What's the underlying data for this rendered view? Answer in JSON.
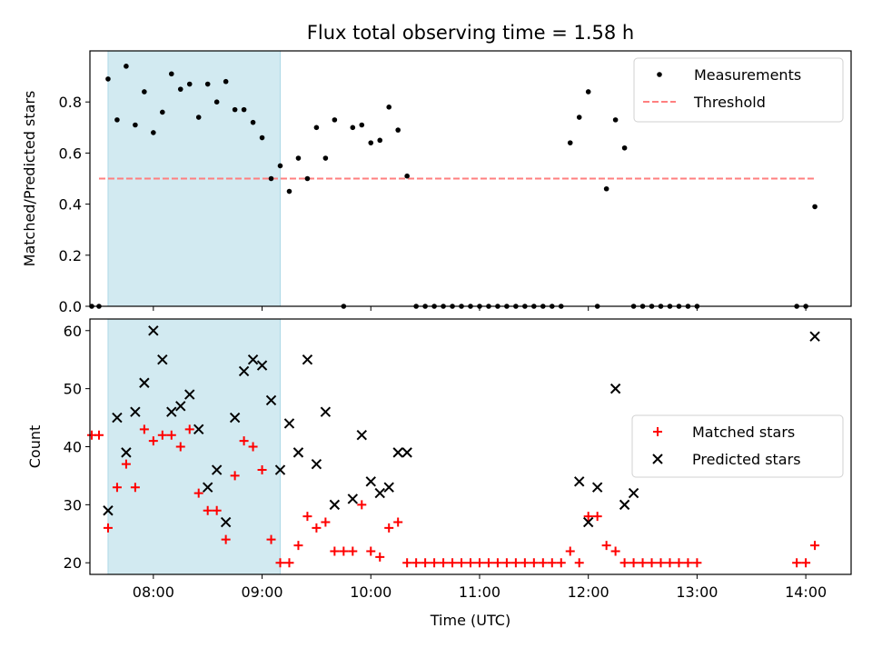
{
  "title": "Flux total observing time = 1.58 h",
  "chart_data": [
    {
      "type": "scatter",
      "ylabel": "Matched/Predicted stars",
      "xlabel": "",
      "xlim": [
        "07:25",
        "14:25"
      ],
      "ylim": [
        0,
        1.0
      ],
      "yticks": [
        0.0,
        0.2,
        0.4,
        0.6,
        0.8
      ],
      "ytick_labels": [
        "0.0",
        "0.2",
        "0.4",
        "0.6",
        "0.8"
      ],
      "shaded_region": {
        "start": "07:35",
        "end": "09:10",
        "color": "#add8e6"
      },
      "legend_position": "upper right",
      "legend": [
        "Measurements",
        "Threshold"
      ],
      "threshold": {
        "name": "Threshold",
        "y": 0.5,
        "x_start": "07:30",
        "x_end": "14:05",
        "color": "#ff7f7f"
      },
      "series": [
        {
          "name": "Measurements",
          "color": "#000000",
          "x": [
            "07:26",
            "07:30",
            "07:35",
            "07:40",
            "07:45",
            "07:50",
            "07:55",
            "08:00",
            "08:05",
            "08:10",
            "08:15",
            "08:20",
            "08:25",
            "08:30",
            "08:35",
            "08:40",
            "08:45",
            "08:50",
            "08:55",
            "09:00",
            "09:05",
            "09:10",
            "09:15",
            "09:20",
            "09:25",
            "09:30",
            "09:35",
            "09:40",
            "09:45",
            "09:50",
            "09:55",
            "10:00",
            "10:05",
            "10:10",
            "10:15",
            "10:20",
            "10:25",
            "10:30",
            "10:35",
            "10:40",
            "10:45",
            "10:50",
            "10:55",
            "11:00",
            "11:05",
            "11:10",
            "11:15",
            "11:20",
            "11:25",
            "11:30",
            "11:35",
            "11:40",
            "11:45",
            "11:50",
            "11:55",
            "12:00",
            "12:05",
            "12:10",
            "12:15",
            "12:20",
            "12:25",
            "12:30",
            "12:35",
            "12:40",
            "12:45",
            "12:50",
            "12:55",
            "13:00",
            "13:55",
            "14:00",
            "14:05"
          ],
          "y": [
            0.0,
            0.0,
            0.89,
            0.73,
            0.94,
            0.71,
            0.84,
            0.68,
            0.76,
            0.91,
            0.85,
            0.87,
            0.74,
            0.87,
            0.8,
            0.88,
            0.77,
            0.77,
            0.72,
            0.66,
            0.5,
            0.55,
            0.45,
            0.58,
            0.5,
            0.7,
            0.58,
            0.73,
            0.0,
            0.7,
            0.71,
            0.64,
            0.65,
            0.78,
            0.69,
            0.51,
            0.0,
            0.0,
            0.0,
            0.0,
            0.0,
            0.0,
            0.0,
            0.0,
            0.0,
            0.0,
            0.0,
            0.0,
            0.0,
            0.0,
            0.0,
            0.0,
            0.0,
            0.64,
            0.74,
            0.84,
            0.0,
            0.46,
            0.73,
            0.62,
            0.0,
            0.0,
            0.0,
            0.0,
            0.0,
            0.0,
            0.0,
            0.0,
            0.0,
            0.0,
            0.39
          ]
        }
      ]
    },
    {
      "type": "scatter",
      "ylabel": "Count",
      "xlabel": "Time (UTC)",
      "xlim": [
        "07:25",
        "14:25"
      ],
      "ylim": [
        18,
        62
      ],
      "yticks": [
        20,
        30,
        40,
        50,
        60
      ],
      "xticks": [
        "08:00",
        "09:00",
        "10:00",
        "11:00",
        "12:00",
        "13:00",
        "14:00"
      ],
      "shaded_region": {
        "start": "07:35",
        "end": "09:10",
        "color": "#add8e6"
      },
      "legend_position": "center right",
      "legend": [
        "Matched stars",
        "Predicted stars"
      ],
      "series": [
        {
          "name": "Matched stars",
          "color": "#ff0000",
          "x": [
            "07:26",
            "07:30",
            "07:35",
            "07:40",
            "07:45",
            "07:50",
            "07:55",
            "08:00",
            "08:05",
            "08:10",
            "08:15",
            "08:20",
            "08:25",
            "08:30",
            "08:35",
            "08:40",
            "08:45",
            "08:50",
            "08:55",
            "09:00",
            "09:05",
            "09:10",
            "09:15",
            "09:20",
            "09:25",
            "09:30",
            "09:35",
            "09:40",
            "09:45",
            "09:50",
            "09:55",
            "10:00",
            "10:05",
            "10:10",
            "10:15",
            "10:20",
            "10:25",
            "10:30",
            "10:35",
            "10:40",
            "10:45",
            "10:50",
            "10:55",
            "11:00",
            "11:05",
            "11:10",
            "11:15",
            "11:20",
            "11:25",
            "11:30",
            "11:35",
            "11:40",
            "11:45",
            "11:50",
            "11:55",
            "12:00",
            "12:05",
            "12:10",
            "12:15",
            "12:20",
            "12:25",
            "12:30",
            "12:35",
            "12:40",
            "12:45",
            "12:50",
            "12:55",
            "13:00",
            "13:55",
            "14:00",
            "14:05"
          ],
          "y": [
            42,
            42,
            26,
            33,
            37,
            33,
            43,
            41,
            42,
            42,
            40,
            43,
            32,
            29,
            29,
            24,
            35,
            41,
            40,
            36,
            24,
            20,
            20,
            23,
            28,
            26,
            27,
            22,
            22,
            22,
            30,
            22,
            21,
            26,
            27,
            20,
            20,
            20,
            20,
            20,
            20,
            20,
            20,
            20,
            20,
            20,
            20,
            20,
            20,
            20,
            20,
            20,
            20,
            22,
            20,
            28,
            28,
            23,
            22,
            20,
            20,
            20,
            20,
            20,
            20,
            20,
            20,
            20,
            20,
            20,
            23
          ]
        },
        {
          "name": "Predicted stars",
          "color": "#000000",
          "x": [
            "07:35",
            "07:40",
            "07:45",
            "07:50",
            "07:55",
            "08:00",
            "08:05",
            "08:10",
            "08:15",
            "08:20",
            "08:25",
            "08:30",
            "08:35",
            "08:40",
            "08:45",
            "08:50",
            "08:55",
            "09:00",
            "09:05",
            "09:10",
            "09:15",
            "09:20",
            "09:25",
            "09:30",
            "09:35",
            "09:40",
            "09:50",
            "09:55",
            "10:00",
            "10:05",
            "10:10",
            "10:15",
            "10:20",
            "11:55",
            "12:00",
            "12:05",
            "12:15",
            "12:20",
            "12:25",
            "14:05"
          ],
          "y": [
            29,
            45,
            39,
            46,
            51,
            60,
            55,
            46,
            47,
            49,
            43,
            33,
            36,
            27,
            45,
            53,
            55,
            54,
            48,
            36,
            44,
            39,
            55,
            37,
            46,
            30,
            31,
            42,
            34,
            32,
            33,
            39,
            39,
            34,
            27,
            33,
            50,
            30,
            32,
            59
          ]
        }
      ]
    }
  ]
}
